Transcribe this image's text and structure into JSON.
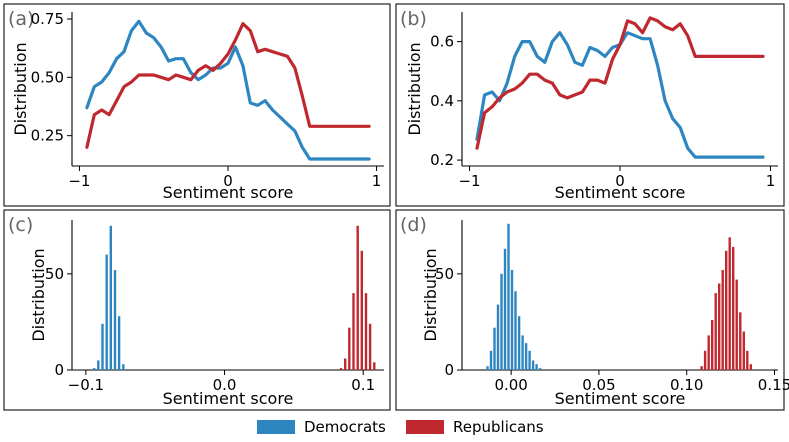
{
  "colors": {
    "dem": "#2E86C1",
    "rep": "#C0282F"
  },
  "legend": {
    "dem": "Democrats",
    "rep": "Republicans"
  },
  "chart_data": [
    {
      "label": "(a)",
      "type": "line",
      "xlabel": "Sentiment score",
      "ylabel": "Distribution",
      "xlim": [
        -1.05,
        1.05
      ],
      "ylim": [
        0.12,
        0.78
      ],
      "xticks": [
        -1,
        0,
        1
      ],
      "xtick_labels": [
        "−1",
        "0",
        "1"
      ],
      "yticks": [
        0.25,
        0.5,
        0.75
      ],
      "ytick_labels": [
        "0.25",
        "0.50",
        "0.75"
      ],
      "x": [
        -0.95,
        -0.9,
        -0.85,
        -0.8,
        -0.75,
        -0.7,
        -0.65,
        -0.6,
        -0.55,
        -0.5,
        -0.45,
        -0.4,
        -0.35,
        -0.3,
        -0.25,
        -0.2,
        -0.15,
        -0.1,
        -0.05,
        0,
        0.05,
        0.1,
        0.15,
        0.2,
        0.25,
        0.3,
        0.35,
        0.4,
        0.45,
        0.5,
        0.55,
        0.6,
        0.65,
        0.7,
        0.75,
        0.8,
        0.85,
        0.9,
        0.95
      ],
      "series": [
        {
          "name": "Democrats",
          "color": "dem",
          "values": [
            0.37,
            0.46,
            0.48,
            0.52,
            0.58,
            0.61,
            0.7,
            0.74,
            0.69,
            0.67,
            0.63,
            0.57,
            0.58,
            0.58,
            0.52,
            0.49,
            0.51,
            0.54,
            0.54,
            0.56,
            0.63,
            0.55,
            0.39,
            0.38,
            0.4,
            0.36,
            0.33,
            0.3,
            0.27,
            0.2,
            0.15,
            0.15,
            0.15,
            0.15,
            0.15,
            0.15,
            0.15,
            0.15,
            0.15
          ]
        },
        {
          "name": "Republicans",
          "color": "rep",
          "values": [
            0.2,
            0.34,
            0.36,
            0.34,
            0.4,
            0.46,
            0.48,
            0.51,
            0.51,
            0.51,
            0.5,
            0.49,
            0.51,
            0.5,
            0.49,
            0.53,
            0.55,
            0.53,
            0.56,
            0.6,
            0.66,
            0.73,
            0.7,
            0.61,
            0.62,
            0.61,
            0.6,
            0.59,
            0.54,
            0.42,
            0.29,
            0.29,
            0.29,
            0.29,
            0.29,
            0.29,
            0.29,
            0.29,
            0.29
          ]
        }
      ]
    },
    {
      "label": "(b)",
      "type": "line",
      "xlabel": "Sentiment score",
      "ylabel": "Distribution",
      "xlim": [
        -1.05,
        1.05
      ],
      "ylim": [
        0.18,
        0.7
      ],
      "xticks": [
        -1,
        0,
        1
      ],
      "xtick_labels": [
        "−1",
        "0",
        "1"
      ],
      "yticks": [
        0.2,
        0.4,
        0.6
      ],
      "ytick_labels": [
        "0.2",
        "0.4",
        "0.6"
      ],
      "x": [
        -0.95,
        -0.9,
        -0.85,
        -0.8,
        -0.75,
        -0.7,
        -0.65,
        -0.6,
        -0.55,
        -0.5,
        -0.45,
        -0.4,
        -0.35,
        -0.3,
        -0.25,
        -0.2,
        -0.15,
        -0.1,
        -0.05,
        0,
        0.05,
        0.1,
        0.15,
        0.2,
        0.25,
        0.3,
        0.35,
        0.4,
        0.45,
        0.5,
        0.55,
        0.6,
        0.65,
        0.7,
        0.75,
        0.8,
        0.85,
        0.9,
        0.95
      ],
      "series": [
        {
          "name": "Democrats",
          "color": "dem",
          "values": [
            0.27,
            0.42,
            0.43,
            0.4,
            0.46,
            0.55,
            0.6,
            0.6,
            0.55,
            0.53,
            0.6,
            0.63,
            0.59,
            0.53,
            0.52,
            0.58,
            0.57,
            0.55,
            0.58,
            0.59,
            0.63,
            0.62,
            0.61,
            0.61,
            0.52,
            0.4,
            0.34,
            0.31,
            0.24,
            0.21,
            0.21,
            0.21,
            0.21,
            0.21,
            0.21,
            0.21,
            0.21,
            0.21,
            0.21
          ]
        },
        {
          "name": "Republicans",
          "color": "rep",
          "values": [
            0.24,
            0.36,
            0.38,
            0.41,
            0.43,
            0.44,
            0.46,
            0.49,
            0.49,
            0.47,
            0.46,
            0.42,
            0.41,
            0.42,
            0.43,
            0.47,
            0.47,
            0.46,
            0.54,
            0.59,
            0.67,
            0.66,
            0.63,
            0.68,
            0.67,
            0.65,
            0.64,
            0.66,
            0.62,
            0.55,
            0.55,
            0.55,
            0.55,
            0.55,
            0.55,
            0.55,
            0.55,
            0.55,
            0.55
          ]
        }
      ]
    },
    {
      "label": "(c)",
      "type": "bar",
      "xlabel": "Sentiment score",
      "ylabel": "Distribution",
      "xlim": [
        -0.11,
        0.115
      ],
      "ylim": [
        0,
        78
      ],
      "xticks": [
        -0.1,
        0,
        0.1
      ],
      "xtick_labels": [
        "−0.1",
        "0.0",
        "0.1"
      ],
      "yticks": [
        0,
        50
      ],
      "ytick_labels": [
        "0",
        "50"
      ],
      "series": [
        {
          "name": "Democrats",
          "color": "dem",
          "x": [
            -0.094,
            -0.091,
            -0.088,
            -0.085,
            -0.082,
            -0.079,
            -0.076,
            -0.073
          ],
          "values": [
            1,
            5,
            24,
            60,
            75,
            52,
            28,
            3
          ]
        },
        {
          "name": "Republicans",
          "color": "rep",
          "x": [
            0.084,
            0.087,
            0.09,
            0.093,
            0.096,
            0.099,
            0.102,
            0.105,
            0.108
          ],
          "values": [
            1,
            6,
            22,
            40,
            75,
            62,
            40,
            24,
            4
          ]
        }
      ]
    },
    {
      "label": "(d)",
      "type": "bar",
      "xlabel": "Sentiment score",
      "ylabel": "Distribution",
      "xlim": [
        -0.028,
        0.152
      ],
      "ylim": [
        0,
        78
      ],
      "xticks": [
        0,
        0.05,
        0.1,
        0.15
      ],
      "xtick_labels": [
        "0.00",
        "0.05",
        "0.10",
        "0.15"
      ],
      "yticks": [
        0,
        50
      ],
      "ytick_labels": [
        "0",
        "50"
      ],
      "series": [
        {
          "name": "Democrats",
          "color": "dem",
          "x": [
            -0.0135,
            -0.0115,
            -0.0095,
            -0.0075,
            -0.0055,
            -0.0035,
            -0.0015,
            0.0005,
            0.0025,
            0.0045,
            0.0065,
            0.0085,
            0.0105,
            0.0125,
            0.0145,
            0.0165
          ],
          "values": [
            2,
            10,
            22,
            34,
            50,
            63,
            76,
            52,
            41,
            28,
            18,
            14,
            10,
            5,
            3,
            1
          ]
        },
        {
          "name": "Republicans",
          "color": "rep",
          "x": [
            0.1085,
            0.1105,
            0.1125,
            0.1145,
            0.1165,
            0.1185,
            0.1205,
            0.1225,
            0.1245,
            0.1265,
            0.1285,
            0.1305,
            0.1325,
            0.1345,
            0.1365
          ],
          "values": [
            2,
            10,
            18,
            26,
            40,
            45,
            52,
            62,
            69,
            64,
            47,
            30,
            20,
            10,
            3
          ]
        }
      ]
    }
  ]
}
